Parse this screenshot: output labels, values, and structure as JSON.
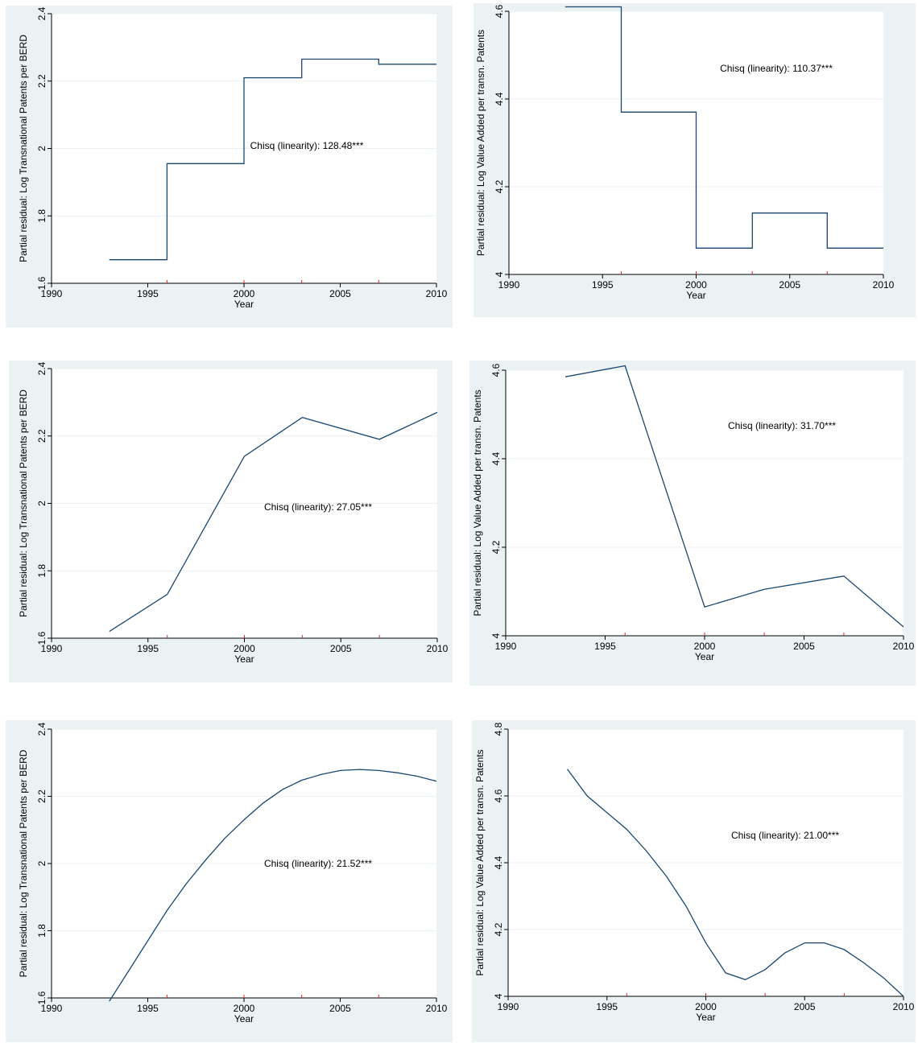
{
  "colors": {
    "panel_background": "#eaf2f3",
    "plot_background": "#ffffff",
    "series_line": "#1a476f",
    "rug_marks": "#e8202a",
    "axis": "#000000"
  },
  "chart_data": [
    {
      "type": "line",
      "step": true,
      "xlabel": "Year",
      "ylabel": "Partial residual: Log Transnational Patents per BERD",
      "xlim": [
        1990,
        2010
      ],
      "ylim": [
        1.6,
        2.4
      ],
      "xticks": [
        1990,
        1995,
        2000,
        2005,
        2010
      ],
      "yticks": [
        1.6,
        1.8,
        2.0,
        2.2,
        2.4
      ],
      "xtick_labels": [
        "1990",
        "1995",
        "2000",
        "2005",
        "2010"
      ],
      "ytick_labels": [
        "1.6",
        "1.8",
        "2",
        "2.2",
        "2.4"
      ],
      "rug": [
        1996,
        2000,
        2003,
        2007
      ],
      "x": [
        1993,
        1996,
        1996,
        2000,
        2000,
        2003,
        2003,
        2007,
        2007,
        2010
      ],
      "y": [
        1.67,
        1.67,
        1.955,
        1.955,
        2.21,
        2.21,
        2.265,
        2.265,
        2.25,
        2.25
      ],
      "annotation": "Chisq (linearity): 128.48***"
    },
    {
      "type": "line",
      "step": true,
      "xlabel": "Year",
      "ylabel": "Partial residual: Log Value Added per transn. Patents",
      "xlim": [
        1990,
        2010
      ],
      "ylim": [
        4.0,
        4.6
      ],
      "xticks": [
        1990,
        1995,
        2000,
        2005,
        2010
      ],
      "yticks": [
        4.0,
        4.2,
        4.4,
        4.6
      ],
      "xtick_labels": [
        "1990",
        "1995",
        "2000",
        "2005",
        "2010"
      ],
      "ytick_labels": [
        "4",
        "4.2",
        "4.4",
        "4.6"
      ],
      "rug": [
        1996,
        2000,
        2003,
        2007
      ],
      "x": [
        1993,
        1996,
        1996,
        2000,
        2000,
        2003,
        2003,
        2007,
        2007,
        2010
      ],
      "y": [
        4.61,
        4.61,
        4.37,
        4.37,
        4.06,
        4.06,
        4.14,
        4.14,
        4.06,
        4.06
      ],
      "annotation": "Chisq (linearity): 110.37***"
    },
    {
      "type": "line",
      "xlabel": "Year",
      "ylabel": "Partial residual: Log Transnational Patents per BERD",
      "xlim": [
        1990,
        2010
      ],
      "ylim": [
        1.6,
        2.4
      ],
      "xticks": [
        1990,
        1995,
        2000,
        2005,
        2010
      ],
      "yticks": [
        1.6,
        1.8,
        2.0,
        2.2,
        2.4
      ],
      "xtick_labels": [
        "1990",
        "1995",
        "2000",
        "2005",
        "2010"
      ],
      "ytick_labels": [
        "1.6",
        "1.8",
        "2",
        "2.2",
        "2.4"
      ],
      "rug": [
        1996,
        2000,
        2003,
        2007
      ],
      "x": [
        1993,
        1996,
        2000,
        2003,
        2007,
        2010
      ],
      "y": [
        1.62,
        1.73,
        2.14,
        2.255,
        2.19,
        2.27
      ],
      "annotation": "Chisq (linearity): 27.05***"
    },
    {
      "type": "line",
      "xlabel": "Year",
      "ylabel": "Partial residual: Log Value Added per transn. Patents",
      "xlim": [
        1990,
        2010
      ],
      "ylim": [
        4.0,
        4.6
      ],
      "xticks": [
        1990,
        1995,
        2000,
        2005,
        2010
      ],
      "yticks": [
        4.0,
        4.2,
        4.4,
        4.6
      ],
      "xtick_labels": [
        "1990",
        "1995",
        "2000",
        "2005",
        "2010"
      ],
      "ytick_labels": [
        "4",
        "4.2",
        "4.4",
        "4.6"
      ],
      "rug": [
        1996,
        2000,
        2003,
        2007
      ],
      "x": [
        1993,
        1996,
        2000,
        2003,
        2007,
        2010
      ],
      "y": [
        4.585,
        4.61,
        4.065,
        4.105,
        4.135,
        4.02
      ],
      "annotation": "Chisq (linearity): 31.70***"
    },
    {
      "type": "line",
      "xlabel": "Year",
      "ylabel": "Partial residual: Log Transnational Patents per BERD",
      "xlim": [
        1990,
        2010
      ],
      "ylim": [
        1.6,
        2.4
      ],
      "xticks": [
        1990,
        1995,
        2000,
        2005,
        2010
      ],
      "yticks": [
        1.6,
        1.8,
        2.0,
        2.2,
        2.4
      ],
      "xtick_labels": [
        "1990",
        "1995",
        "2000",
        "2005",
        "2010"
      ],
      "ytick_labels": [
        "1.6",
        "1.8",
        "2",
        "2.2",
        "2.4"
      ],
      "rug": [
        1996,
        2000,
        2003,
        2007
      ],
      "x": [
        1993,
        1994,
        1995,
        1996,
        1997,
        1998,
        1999,
        2000,
        2001,
        2002,
        2003,
        2004,
        2005,
        2006,
        2007,
        2008,
        2009,
        2010
      ],
      "y": [
        1.59,
        1.68,
        1.77,
        1.86,
        1.94,
        2.01,
        2.075,
        2.13,
        2.18,
        2.22,
        2.248,
        2.265,
        2.277,
        2.28,
        2.277,
        2.27,
        2.26,
        2.245
      ],
      "annotation": "Chisq (linearity): 21.52***"
    },
    {
      "type": "line",
      "xlabel": "Year",
      "ylabel": "Partial residual: Log Value Added per transn. Patents",
      "xlim": [
        1990,
        2010
      ],
      "ylim": [
        4.0,
        4.8
      ],
      "xticks": [
        1990,
        1995,
        2000,
        2005,
        2010
      ],
      "yticks": [
        4.0,
        4.2,
        4.4,
        4.6,
        4.8
      ],
      "xtick_labels": [
        "1990",
        "1995",
        "2000",
        "2005",
        "2010"
      ],
      "ytick_labels": [
        "4",
        "4.2",
        "4.4",
        "4.6",
        "4.8"
      ],
      "rug": [
        1996,
        2000,
        2003,
        2007
      ],
      "x": [
        1993,
        1994,
        1995,
        1996,
        1997,
        1998,
        1999,
        2000,
        2001,
        2002,
        2003,
        2004,
        2005,
        2006,
        2007,
        2008,
        2009,
        2010
      ],
      "y": [
        4.68,
        4.6,
        4.55,
        4.5,
        4.435,
        4.36,
        4.27,
        4.16,
        4.07,
        4.05,
        4.08,
        4.13,
        4.16,
        4.16,
        4.14,
        4.1,
        4.055,
        4.0
      ],
      "annotation": "Chisq (linearity): 21.00***"
    }
  ]
}
